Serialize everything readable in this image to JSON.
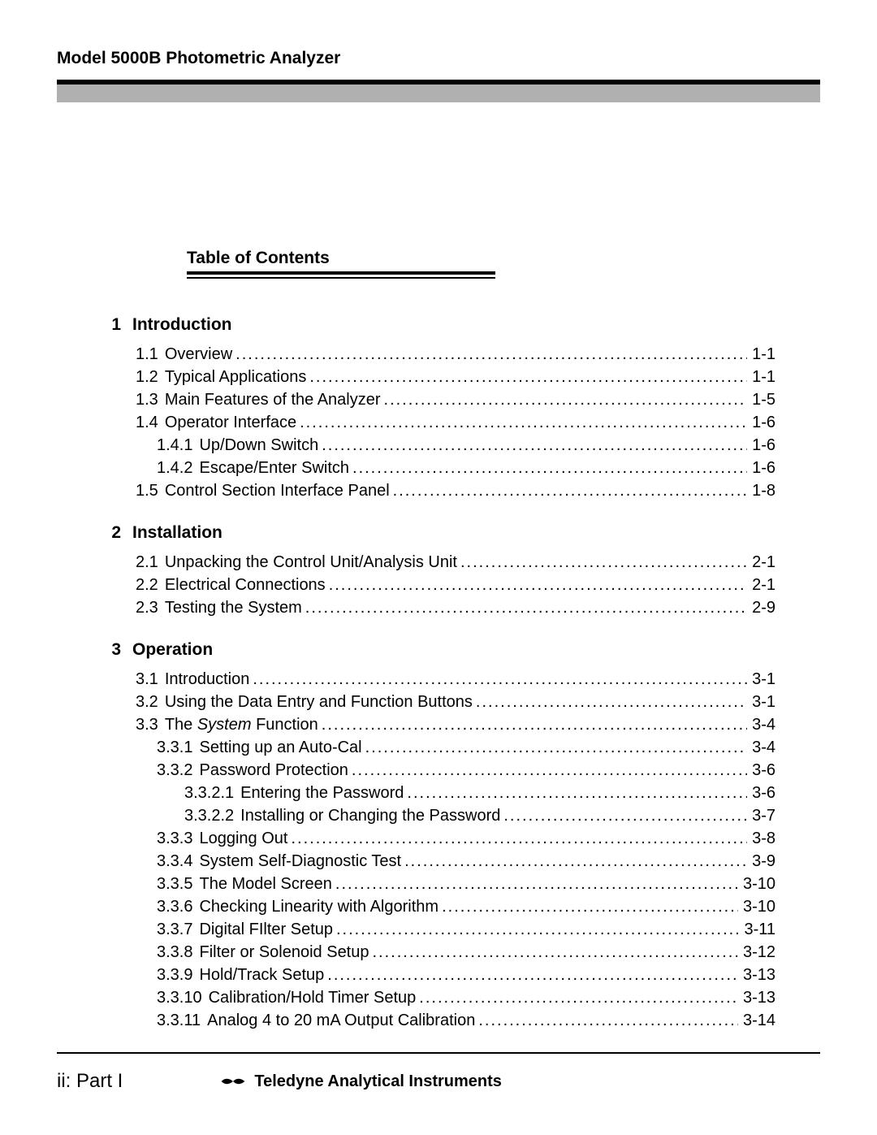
{
  "header": {
    "title": "Model 5000B Photometric Analyzer"
  },
  "toc_title": "Table of Contents",
  "sections": [
    {
      "num": "1",
      "title": "Introduction",
      "entries": [
        {
          "indent": 1,
          "num": "1.1",
          "title": "Overview",
          "page": "1-1"
        },
        {
          "indent": 1,
          "num": "1.2",
          "title": "Typical Applications",
          "page": "1-1"
        },
        {
          "indent": 1,
          "num": "1.3",
          "title": "Main Features of the Analyzer",
          "page": "1-5"
        },
        {
          "indent": 1,
          "num": "1.4",
          "title": "Operator Interface",
          "page": "1-6"
        },
        {
          "indent": 2,
          "num": "1.4.1",
          "title": "Up/Down Switch",
          "page": "1-6"
        },
        {
          "indent": 2,
          "num": "1.4.2",
          "title": "Escape/Enter Switch",
          "page": "1-6"
        },
        {
          "indent": 1,
          "num": "1.5",
          "title": "Control Section Interface Panel",
          "page": "1-8"
        }
      ]
    },
    {
      "num": "2",
      "title": "Installation",
      "entries": [
        {
          "indent": 1,
          "num": "2.1",
          "title": "Unpacking the Control Unit/Analysis Unit",
          "page": "2-1"
        },
        {
          "indent": 1,
          "num": "2.2",
          "title": "Electrical Connections",
          "page": "2-1"
        },
        {
          "indent": 1,
          "num": "2.3",
          "title": "Testing the System",
          "page": "2-9"
        }
      ]
    },
    {
      "num": "3",
      "title": "Operation",
      "entries": [
        {
          "indent": 1,
          "num": "3.1",
          "title": "Introduction",
          "page": "3-1"
        },
        {
          "indent": 1,
          "num": "3.2",
          "title": "Using the Data Entry and Function Buttons",
          "page": "3-1"
        },
        {
          "indent": 1,
          "num": "3.3",
          "title_pre": "The ",
          "title_ital": "System",
          "title_post": " Function",
          "page": "3-4"
        },
        {
          "indent": 2,
          "num": "3.3.1",
          "title": "Setting up an Auto-Cal",
          "page": "3-4"
        },
        {
          "indent": 2,
          "num": "3.3.2",
          "title": "Password Protection",
          "page": "3-6"
        },
        {
          "indent": 3,
          "num": "3.3.2.1",
          "title": "Entering the Password",
          "page": "3-6"
        },
        {
          "indent": 3,
          "num": "3.3.2.2",
          "title": "Installing or Changing the Password",
          "page": "3-7"
        },
        {
          "indent": 2,
          "num": "3.3.3",
          "title": "Logging Out",
          "page": "3-8"
        },
        {
          "indent": 2,
          "num": "3.3.4",
          "title": "System Self-Diagnostic Test",
          "page": "3-9"
        },
        {
          "indent": 2,
          "num": "3.3.5",
          "title": "The Model Screen",
          "page": "3-10"
        },
        {
          "indent": 2,
          "num": "3.3.6",
          "title": "Checking Linearity with Algorithm",
          "page": "3-10"
        },
        {
          "indent": 2,
          "num": "3.3.7",
          "title": "Digital FIlter Setup",
          "page": "3-11"
        },
        {
          "indent": 2,
          "num": "3.3.8",
          "title": "Filter or Solenoid Setup",
          "page": "3-12"
        },
        {
          "indent": 2,
          "num": "3.3.9",
          "title": "Hold/Track Setup",
          "page": "3-13"
        },
        {
          "indent": 2,
          "num": "3.3.10",
          "title": "Calibration/Hold Timer Setup",
          "page": "3-13"
        },
        {
          "indent": 2,
          "num": "3.3.11",
          "title": "Analog 4 to 20 mA Output Calibration",
          "page": "3-14"
        }
      ]
    }
  ],
  "footer": {
    "left": "ii:  Part I",
    "right": "Teledyne Analytical Instruments"
  }
}
